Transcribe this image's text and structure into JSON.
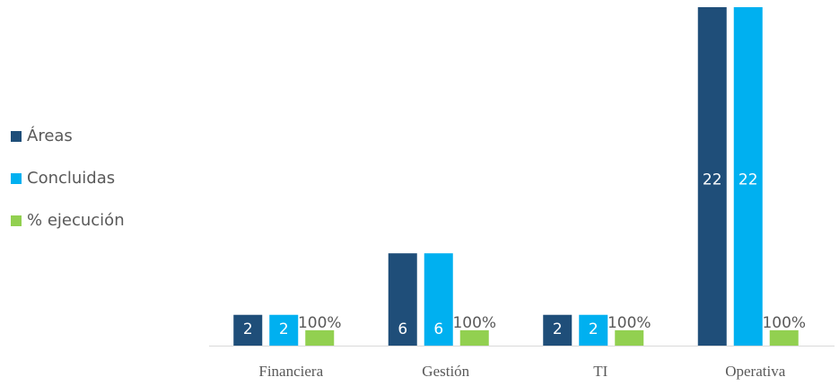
{
  "chart_data": {
    "type": "bar",
    "categories": [
      "Financiera",
      "Gestión",
      "TI",
      "Operativa"
    ],
    "series": [
      {
        "name": "Áreas",
        "color": "#1f4e79",
        "values": [
          2,
          6,
          2,
          22
        ]
      },
      {
        "name": "Concluidas",
        "color": "#00b0f0",
        "values": [
          2,
          6,
          2,
          22
        ]
      },
      {
        "name": "% ejecución",
        "color": "#92d050",
        "values": [
          100,
          100,
          100,
          100
        ],
        "value_labels": [
          "100%",
          "100%",
          "100%",
          "100%"
        ],
        "axis": "y2"
      }
    ],
    "ylim": [
      0,
      22
    ],
    "y2lim": [
      0,
      2200
    ],
    "legend": "left"
  }
}
